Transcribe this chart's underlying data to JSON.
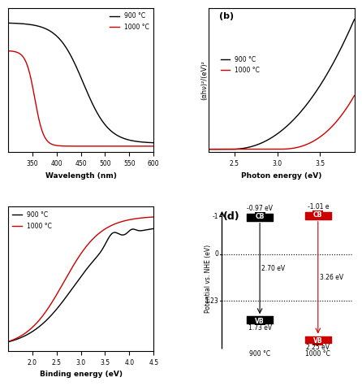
{
  "panel_a": {
    "x_label": "Wavelength (nm)",
    "x_min": 300,
    "x_max": 600,
    "legend_900": "900 °C",
    "legend_1000": "1000 °C",
    "color_900": "#000000",
    "color_1000": "#cc0000"
  },
  "panel_b": {
    "label": "(b)",
    "x_label": "Photon energy (eV)",
    "y_label": "(αhν)²/(eV)²",
    "x_min": 2.2,
    "x_max": 3.9,
    "legend_900": "900 °C",
    "legend_1000": "1000 °C",
    "color_900": "#000000",
    "color_1000": "#cc0000"
  },
  "panel_c": {
    "x_label": "Binding energy (eV)",
    "x_min": 1.5,
    "x_max": 4.5,
    "legend_900": "900 °C",
    "legend_1000": "1000 °C",
    "color_900": "#000000",
    "color_1000": "#cc0000"
  },
  "panel_d": {
    "label": "(d)",
    "color_900": "#000000",
    "color_1000": "#cc0000",
    "cb_900_label": "-0.97 eV",
    "cb_1000_label": "-1.01 e",
    "vb_900_label": "1.73 eV",
    "vb_1000_label": "2.25 eV",
    "gap_900_label": "2.70 eV",
    "gap_1000_label": "3.26 eV",
    "cb_900_pot": -0.97,
    "cb_1000_pot": -1.01,
    "vb_900_pot": 1.73,
    "vb_1000_pot": 2.25,
    "nhe_label": "1.23",
    "nhe_val": 1.23,
    "y_label": "Potential vs. NHE (eV)",
    "label_900": "900 °C",
    "label_1000": "1000 °C"
  },
  "bg_color": "#ffffff"
}
